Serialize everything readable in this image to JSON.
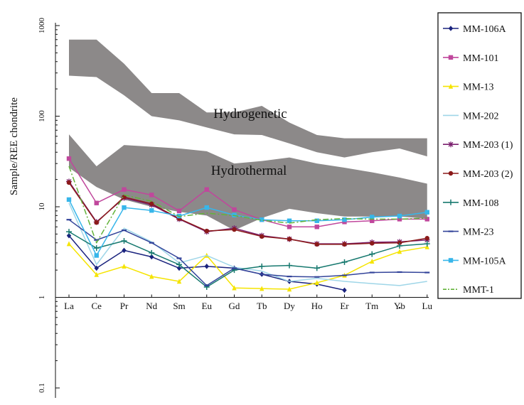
{
  "chart_data": {
    "type": "line",
    "yscale": "log",
    "ylabel": "Sample/REE chondrite",
    "ylim": [
      0.1,
      1000
    ],
    "ytick_labels": [
      "1000",
      "100",
      "10",
      "1",
      "0.1"
    ],
    "categories": [
      "La",
      "Ce",
      "Pr",
      "Nd",
      "Sm",
      "Eu",
      "Gd",
      "Tb",
      "Dy",
      "Ho",
      "Er",
      "Tm",
      "Yb",
      "Lu"
    ],
    "regions": [
      {
        "name": "Hydrogenetic",
        "label": "Hydrogenetic",
        "color": "#8c8989",
        "upper": [
          700,
          700,
          380,
          180,
          180,
          110,
          110,
          130,
          85,
          62,
          57,
          57,
          57,
          57
        ],
        "lower": [
          280,
          270,
          170,
          100,
          90,
          75,
          63,
          62,
          50,
          40,
          35,
          40,
          44,
          36
        ]
      },
      {
        "name": "Hydrothermal",
        "label": "Hydrothermal",
        "color": "#8c8989",
        "upper": [
          63,
          28,
          48,
          46,
          44,
          41,
          30,
          32,
          35,
          30,
          27,
          24,
          21,
          18
        ],
        "lower": [
          27,
          16.5,
          12,
          10,
          8.8,
          8,
          5.5,
          7.5,
          9.5,
          8.5,
          7.8,
          7.8,
          7.8,
          7.4
        ]
      }
    ],
    "series": [
      {
        "name": "MM-106A",
        "color": "#1a237e",
        "marker": "diamond",
        "dash": "",
        "values": [
          4.8,
          2.1,
          3.3,
          2.8,
          2.1,
          2.2,
          2.1,
          1.8,
          1.5,
          1.4,
          1.2,
          null,
          null,
          null
        ]
      },
      {
        "name": "MM-101",
        "color": "#c0479c",
        "marker": "square",
        "dash": "",
        "values": [
          34,
          11,
          15.5,
          13.5,
          9,
          15.5,
          9.3,
          7.2,
          6,
          6,
          6.8,
          7,
          7.3,
          7.3
        ]
      },
      {
        "name": "MM-13",
        "color": "#f5e400",
        "marker": "triangle",
        "dash": "",
        "values": [
          3.9,
          1.78,
          2.2,
          1.7,
          1.5,
          2.9,
          1.27,
          1.25,
          1.23,
          1.45,
          1.75,
          2.5,
          3.2,
          3.6
        ]
      },
      {
        "name": "MM-202",
        "color": "#9fd6e8",
        "marker": "none",
        "dash": "",
        "values": [
          11,
          2.3,
          5.8,
          4.1,
          2.4,
          2.9,
          2.15,
          1.95,
          1.5,
          1.62,
          1.5,
          1.42,
          1.35,
          1.5
        ]
      },
      {
        "name": "MM-203 (1)",
        "color": "#7a1f6e",
        "marker": "star",
        "dash": "",
        "values": [
          19,
          6.8,
          12.5,
          10.5,
          7.3,
          5.3,
          5.8,
          4.8,
          4.4,
          3.9,
          3.9,
          4.05,
          4.1,
          4.3
        ]
      },
      {
        "name": "MM-203 (2)",
        "color": "#8b1a1a",
        "marker": "circle",
        "dash": "",
        "values": [
          18.5,
          6.7,
          12.8,
          10.8,
          7.4,
          5.4,
          5.6,
          4.7,
          4.4,
          3.85,
          3.85,
          3.95,
          4,
          4.5
        ]
      },
      {
        "name": "MM-108",
        "color": "#17796f",
        "marker": "plus",
        "dash": "",
        "values": [
          5.3,
          3.5,
          4.2,
          3.1,
          2.3,
          1.3,
          2,
          2.2,
          2.25,
          2.1,
          2.45,
          3,
          3.7,
          3.9
        ]
      },
      {
        "name": "MM-23",
        "color": "#33449a",
        "marker": "dash",
        "dash": "",
        "values": [
          7.2,
          4.3,
          5.5,
          4,
          2.7,
          1.35,
          2.1,
          1.8,
          1.7,
          1.68,
          1.75,
          1.88,
          1.9,
          1.88
        ]
      },
      {
        "name": "MM-105A",
        "color": "#37b6ea",
        "marker": "square",
        "dash": "",
        "values": [
          12,
          2.9,
          9.8,
          9.1,
          7.9,
          9.8,
          8.1,
          7.2,
          7,
          7,
          7.2,
          7.7,
          7.9,
          8.7
        ]
      },
      {
        "name": "MMT-1",
        "color": "#63b33a",
        "marker": "none",
        "dash": "8,3,2,3",
        "values": [
          28,
          4,
          13.5,
          11.5,
          7.8,
          8.5,
          8,
          7.1,
          6.6,
          7.2,
          7.4,
          7.3,
          7.3,
          7.5
        ]
      }
    ]
  },
  "stray_mark": "•"
}
